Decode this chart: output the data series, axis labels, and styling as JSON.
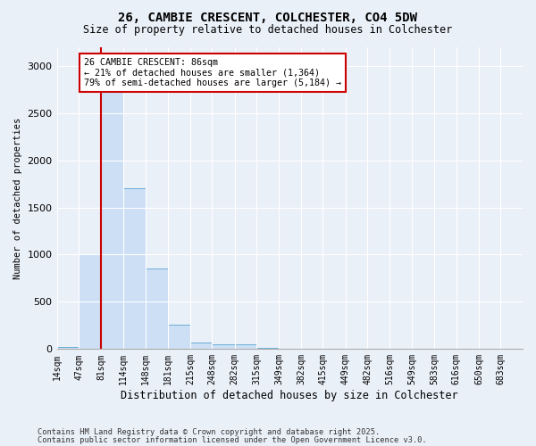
{
  "title": "26, CAMBIE CRESCENT, COLCHESTER, CO4 5DW",
  "subtitle": "Size of property relative to detached houses in Colchester",
  "xlabel": "Distribution of detached houses by size in Colchester",
  "ylabel": "Number of detached properties",
  "bar_color": "#ccdff5",
  "bar_edge_color": "#6aaed6",
  "background_color": "#eaf0f8",
  "grid_color": "#ffffff",
  "annotation_text": "26 CAMBIE CRESCENT: 86sqm\n← 21% of detached houses are smaller (1,364)\n79% of semi-detached houses are larger (5,184) →",
  "vline_x": 81,
  "vline_color": "#cc0000",
  "annotation_box_color": "#cc0000",
  "ylim": [
    0,
    3200
  ],
  "categories": [
    "14sqm",
    "47sqm",
    "81sqm",
    "114sqm",
    "148sqm",
    "181sqm",
    "215sqm",
    "248sqm",
    "282sqm",
    "315sqm",
    "349sqm",
    "382sqm",
    "415sqm",
    "449sqm",
    "482sqm",
    "516sqm",
    "549sqm",
    "583sqm",
    "616sqm",
    "650sqm",
    "683sqm"
  ],
  "bin_edges": [
    14,
    47,
    81,
    114,
    148,
    181,
    215,
    248,
    282,
    315,
    349,
    382,
    415,
    449,
    482,
    516,
    549,
    583,
    616,
    650,
    683,
    716
  ],
  "bar_heights": [
    20,
    1000,
    3000,
    1700,
    850,
    255,
    65,
    55,
    55,
    10,
    5,
    0,
    5,
    0,
    0,
    0,
    0,
    0,
    0,
    0,
    0
  ],
  "yticks": [
    0,
    500,
    1000,
    1500,
    2000,
    2500,
    3000
  ],
  "footnote1": "Contains HM Land Registry data © Crown copyright and database right 2025.",
  "footnote2": "Contains public sector information licensed under the Open Government Licence v3.0."
}
